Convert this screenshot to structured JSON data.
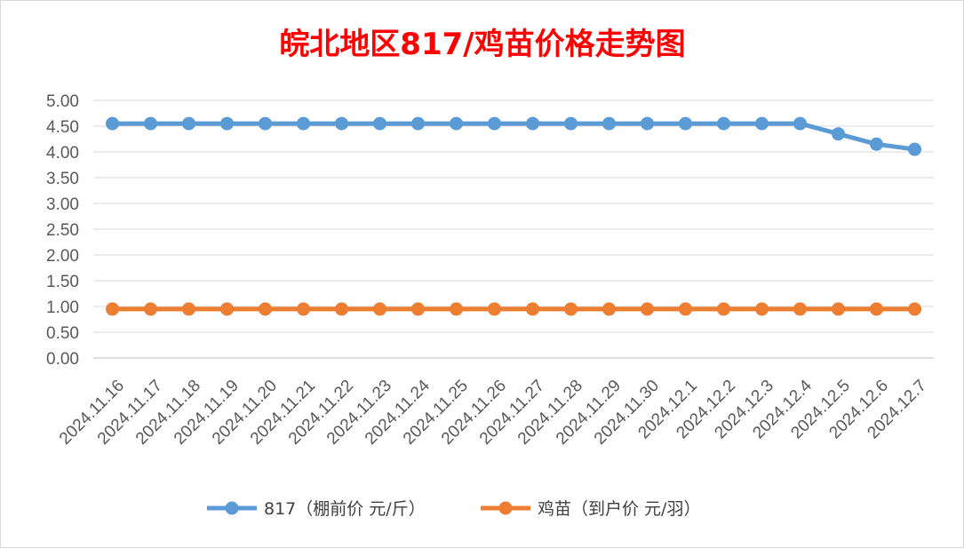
{
  "chart_data": {
    "type": "line",
    "title": "皖北地区817/鸡苗价格走势图",
    "title_color": "#ff0000",
    "xlabel": "",
    "ylabel": "",
    "categories": [
      "2024.11.16",
      "2024.11.17",
      "2024.11.18",
      "2024.11.19",
      "2024.11.20",
      "2024.11.21",
      "2024.11.22",
      "2024.11.23",
      "2024.11.24",
      "2024.11.25",
      "2024.11.26",
      "2024.11.27",
      "2024.11.28",
      "2024.11.29",
      "2024.11.30",
      "2024.12.1",
      "2024.12.2",
      "2024.12.3",
      "2024.12.4",
      "2024.12.5",
      "2024.12.6",
      "2024.12.7"
    ],
    "ylim": [
      0,
      5
    ],
    "yticks": [
      "0.00",
      "0.50",
      "1.00",
      "1.50",
      "2.00",
      "2.50",
      "3.00",
      "3.50",
      "4.00",
      "4.50",
      "5.00"
    ],
    "grid": true,
    "legend_position": "bottom",
    "series": [
      {
        "name": "817（棚前价 元/斤）",
        "color": "#5b9bd5",
        "values": [
          4.55,
          4.55,
          4.55,
          4.55,
          4.55,
          4.55,
          4.55,
          4.55,
          4.55,
          4.55,
          4.55,
          4.55,
          4.55,
          4.55,
          4.55,
          4.55,
          4.55,
          4.55,
          4.55,
          4.35,
          4.15,
          4.05
        ]
      },
      {
        "name": "鸡苗（到户价 元/羽）",
        "color": "#ed7d31",
        "values": [
          0.95,
          0.95,
          0.95,
          0.95,
          0.95,
          0.95,
          0.95,
          0.95,
          0.95,
          0.95,
          0.95,
          0.95,
          0.95,
          0.95,
          0.95,
          0.95,
          0.95,
          0.95,
          0.95,
          0.95,
          0.95,
          0.95
        ]
      }
    ]
  }
}
